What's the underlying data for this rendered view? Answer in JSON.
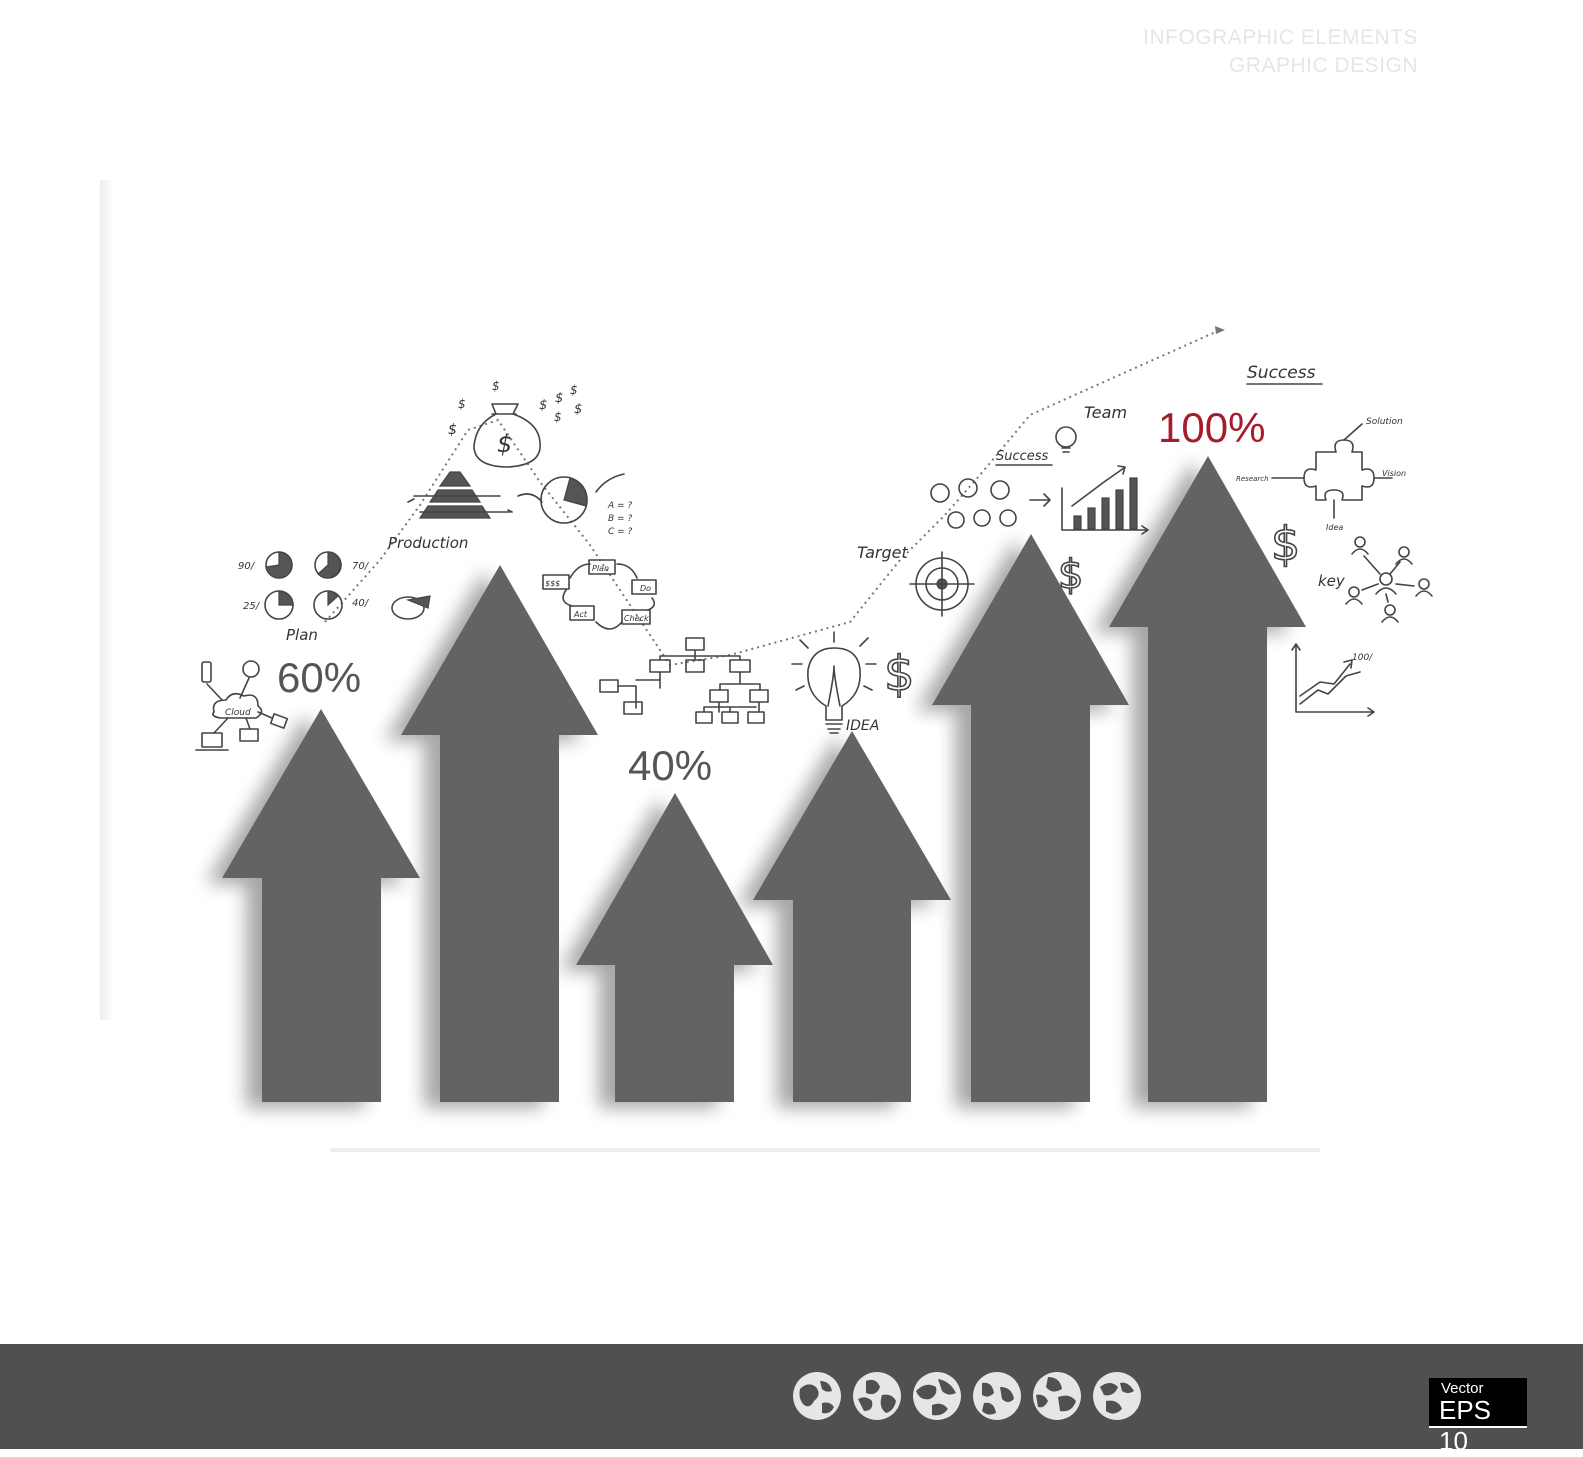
{
  "labels": {
    "pct_60": "60%",
    "pct_40": "40%",
    "pct_100": "100%",
    "plan": "Plan",
    "production": "Production",
    "target": "Target",
    "idea": "IDEA",
    "team": "Team",
    "success_small": "Success",
    "success_top": "Success",
    "key": "key",
    "solution": "Solution",
    "vision": "Vision",
    "research": "Research",
    "idea_small": "Idea",
    "cloud": "Cloud",
    "plan_box": "Plan",
    "do_box": "Do",
    "act_box": "Act",
    "check_box": "Check",
    "money_box": "$$$",
    "pie_90": "90/",
    "pie_70": "70/",
    "pie_25": "25/",
    "pie_40": "40/",
    "abc_a": "A = ?",
    "abc_b": "B = ?",
    "abc_c": "C = ?",
    "hundred_small": "100/"
  },
  "footer": {
    "line1": "INFOGRAPHIC ELEMENTS",
    "line2": "GRAPHIC DESIGN",
    "badge_top": "Vector",
    "badge_main": "EPS 10"
  },
  "colors": {
    "arrow": "#646464",
    "footer_bg": "#514f50",
    "accent": "#a51d2d"
  },
  "icons": [
    "globe-icon",
    "globe-icon",
    "globe-icon",
    "globe-icon",
    "globe-icon",
    "globe-icon"
  ]
}
